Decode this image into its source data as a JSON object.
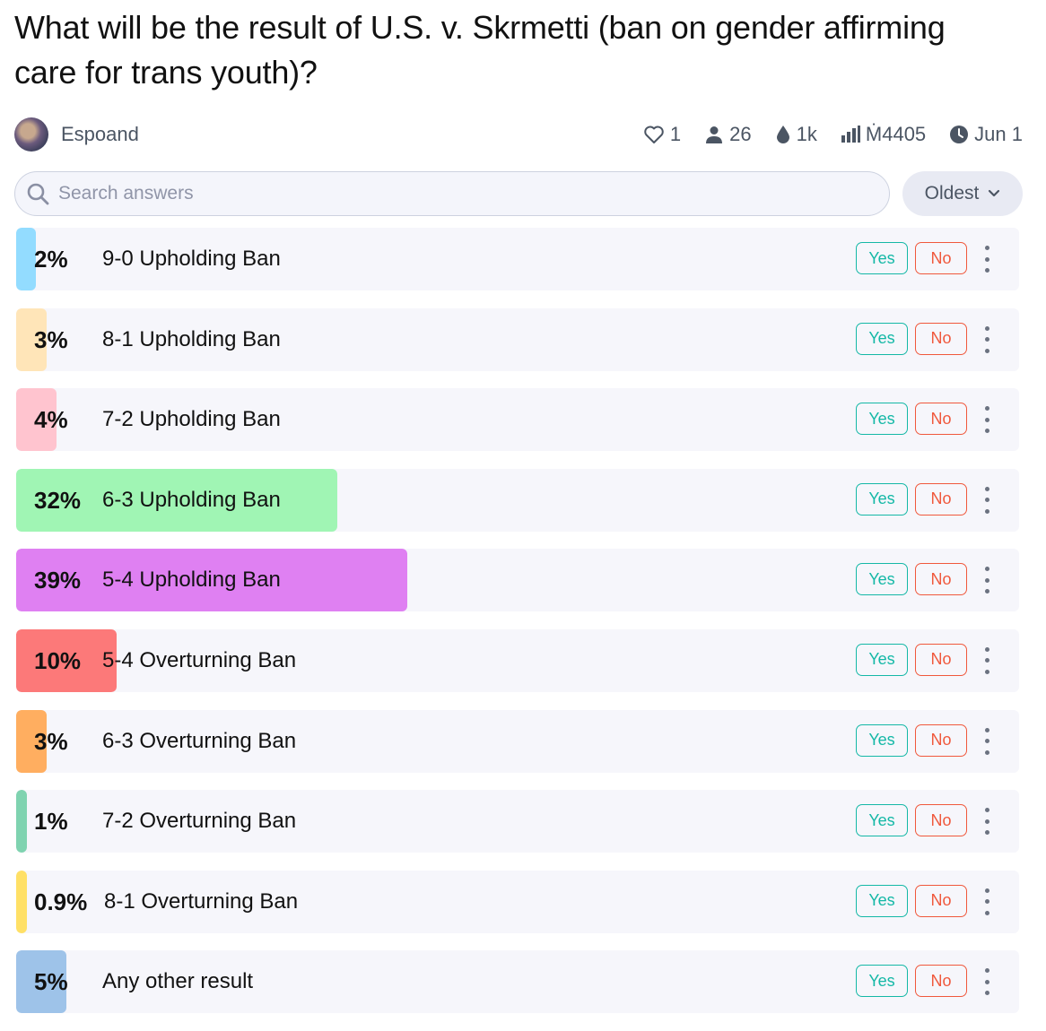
{
  "question": {
    "title": "What will be the result of U.S. v. Skrmetti (ban on gender affirming care for trans youth)?"
  },
  "meta": {
    "author": "Espoand",
    "likes": "1",
    "traders": "26",
    "liquidity": "1k",
    "volume": "Ṁ4405",
    "close_date": "Jun 1"
  },
  "search": {
    "placeholder": "Search answers",
    "value": ""
  },
  "sort": {
    "selected": "Oldest"
  },
  "buttons": {
    "yes": "Yes",
    "no": "No"
  },
  "answers": [
    {
      "pct_label": "2%",
      "probability": 2,
      "label": "9-0 Upholding Ban",
      "color": "#93dcff"
    },
    {
      "pct_label": "3%",
      "probability": 3,
      "label": "8-1 Upholding Ban",
      "color": "#ffe5b8"
    },
    {
      "pct_label": "4%",
      "probability": 4,
      "label": "7-2 Upholding Ban",
      "color": "#ffc4cf"
    },
    {
      "pct_label": "32%",
      "probability": 32,
      "label": "6-3 Upholding Ban",
      "color": "#a0f5b4"
    },
    {
      "pct_label": "39%",
      "probability": 39,
      "label": "5-4 Upholding Ban",
      "color": "#df80f2"
    },
    {
      "pct_label": "10%",
      "probability": 10,
      "label": "5-4 Overturning Ban",
      "color": "#fc7979"
    },
    {
      "pct_label": "3%",
      "probability": 3,
      "label": "6-3 Overturning Ban",
      "color": "#ffae60"
    },
    {
      "pct_label": "1%",
      "probability": 1,
      "label": "7-2 Overturning Ban",
      "color": "#7fd3b0"
    },
    {
      "pct_label": "0.9%",
      "probability": 0.9,
      "label": "8-1 Overturning Ban",
      "color": "#ffe066"
    },
    {
      "pct_label": "5%",
      "probability": 5,
      "label": "Any other result",
      "color": "#9ec3e9"
    }
  ]
}
